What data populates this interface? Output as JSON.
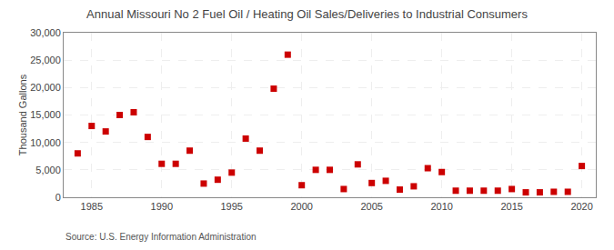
{
  "chart_data": {
    "type": "scatter",
    "title": "Annual Missouri No 2 Fuel Oil / Heating Oil Sales/Deliveries to Industrial Consumers",
    "ylabel": "Thousand Gallons",
    "source": "Source: U.S. Energy Information Administration",
    "color": "#cc0000",
    "marker": "square",
    "grid": true,
    "xlim": [
      1983,
      2021
    ],
    "ylim": [
      0,
      30000
    ],
    "xticks": [
      1985,
      1990,
      1995,
      2000,
      2005,
      2010,
      2015,
      2020
    ],
    "yticks": [
      0,
      {
        "value": 5000,
        "label": "5,000"
      },
      {
        "value": 10000,
        "label": "10,000"
      },
      {
        "value": 15000,
        "label": "15,000"
      },
      {
        "value": 20000,
        "label": "20,000"
      },
      {
        "value": 25000,
        "label": "25,000"
      },
      {
        "value": 30000,
        "label": "30,000"
      }
    ],
    "x": [
      1984,
      1985,
      1986,
      1987,
      1988,
      1989,
      1990,
      1991,
      1992,
      1993,
      1994,
      1995,
      1996,
      1997,
      1998,
      1999,
      2000,
      2001,
      2002,
      2003,
      2004,
      2005,
      2006,
      2007,
      2008,
      2009,
      2010,
      2011,
      2012,
      2013,
      2014,
      2015,
      2016,
      2017,
      2018,
      2019,
      2020
    ],
    "values": [
      8000,
      13000,
      12000,
      15000,
      15500,
      11000,
      6100,
      6100,
      8500,
      2500,
      3200,
      4500,
      10700,
      8500,
      19800,
      26000,
      2200,
      5000,
      5000,
      1500,
      6000,
      2600,
      3000,
      1400,
      2000,
      5300,
      4600,
      1200,
      1200,
      1200,
      1200,
      1500,
      900,
      900,
      1000,
      1000,
      5700
    ]
  }
}
